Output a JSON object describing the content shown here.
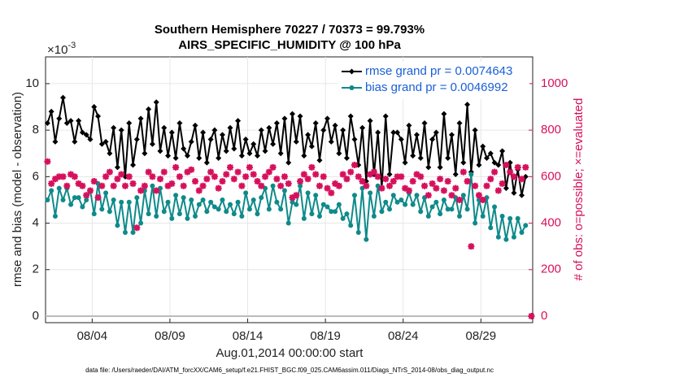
{
  "chart_data": {
    "type": "line",
    "title": [
      "Southern Hemisphere 70227 / 70373 = 99.793%",
      "AIRS_SPECIFIC_HUMIDITY @ 100 hPa"
    ],
    "ylabel": "rmse and bias (model - observation)",
    "y2label": "# of obs: o=possible; ×=evaluated",
    "xlabel": "Aug.01,2014 00:00:00 start",
    "footnote": "data file: /Users/raeder/DAI/ATM_forcXX/CAM6_setup/f.e21.FHIST_BGC.f09_025.CAM6assim.011/Diags_NTrS_2014-08/obs_diag_output.nc",
    "y_multiplier": {
      "base": "×10",
      "exponent": "-3"
    },
    "xlim": [
      0,
      31.33
    ],
    "xticks": [
      {
        "value": 3,
        "label": "08/04"
      },
      {
        "value": 8,
        "label": "08/09"
      },
      {
        "value": 13,
        "label": "08/14"
      },
      {
        "value": 18,
        "label": "08/19"
      },
      {
        "value": 23,
        "label": "08/24"
      },
      {
        "value": 28,
        "label": "08/29"
      }
    ],
    "ylim": [
      -0.28,
      11.15
    ],
    "yticks": [
      0,
      2,
      4,
      6,
      8,
      10
    ],
    "y2lim": [
      -28,
      1115
    ],
    "y2ticks": [
      0,
      200,
      400,
      600,
      800,
      1000
    ],
    "grid": true,
    "legend": "upper right",
    "x": [
      0.125,
      0.375,
      0.625,
      0.875,
      1.125,
      1.375,
      1.625,
      1.875,
      2.125,
      2.375,
      2.625,
      2.875,
      3.125,
      3.375,
      3.625,
      3.875,
      4.125,
      4.375,
      4.625,
      4.875,
      5.125,
      5.375,
      5.625,
      5.875,
      6.125,
      6.375,
      6.625,
      6.875,
      7.125,
      7.375,
      7.625,
      7.875,
      8.125,
      8.375,
      8.625,
      8.875,
      9.125,
      9.375,
      9.625,
      9.875,
      10.125,
      10.375,
      10.625,
      10.875,
      11.125,
      11.375,
      11.625,
      11.875,
      12.125,
      12.375,
      12.625,
      12.875,
      13.125,
      13.375,
      13.625,
      13.875,
      14.125,
      14.375,
      14.625,
      14.875,
      15.125,
      15.375,
      15.625,
      15.875,
      16.125,
      16.375,
      16.625,
      16.875,
      17.125,
      17.375,
      17.625,
      17.875,
      18.125,
      18.375,
      18.625,
      18.875,
      19.125,
      19.375,
      19.625,
      19.875,
      20.125,
      20.375,
      20.625,
      20.875,
      21.125,
      21.375,
      21.625,
      21.875,
      22.125,
      22.375,
      22.625,
      22.875,
      23.125,
      23.375,
      23.625,
      23.875,
      24.125,
      24.375,
      24.625,
      24.875,
      25.125,
      25.375,
      25.625,
      25.875,
      26.125,
      26.375,
      26.625,
      26.875,
      27.125,
      27.375,
      27.625,
      27.875,
      28.125,
      28.375,
      28.625,
      28.875,
      29.125,
      29.375,
      29.625,
      29.875,
      30.125,
      30.375,
      30.625,
      30.875,
      31.25
    ],
    "series": [
      {
        "name": "rmse grand pr = 0.0074643",
        "color": "#000000",
        "marker": "diamond",
        "values": [
          8.3,
          8.8,
          7.5,
          8.5,
          9.4,
          8.3,
          8.4,
          7.5,
          8.4,
          7.9,
          7.8,
          7.6,
          9.0,
          8.6,
          7.4,
          7.5,
          7.0,
          8.1,
          6.4,
          8.0,
          6.0,
          8.3,
          6.5,
          7.6,
          8.5,
          7.0,
          8.9,
          7.4,
          9.2,
          7.1,
          8.1,
          6.9,
          7.9,
          6.8,
          8.3,
          7.2,
          6.9,
          7.5,
          8.2,
          6.8,
          7.9,
          6.6,
          7.6,
          8.0,
          6.8,
          7.8,
          7.1,
          8.1,
          7.2,
          8.4,
          6.9,
          7.6,
          7.0,
          7.4,
          6.9,
          8.0,
          7.1,
          8.1,
          7.4,
          8.3,
          7.0,
          8.5,
          6.6,
          8.7,
          7.5,
          8.6,
          6.9,
          7.8,
          7.3,
          8.3,
          6.7,
          8.0,
          8.5,
          7.5,
          8.2,
          7.0,
          8.0,
          6.8,
          8.6,
          7.6,
          6.5,
          8.1,
          5.8,
          8.4,
          6.1,
          7.9,
          5.5,
          8.6,
          6.1,
          7.9,
          7.9,
          7.6,
          6.6,
          8.2,
          6.9,
          7.8,
          6.8,
          8.3,
          6.4,
          7.6,
          7.9,
          6.4,
          8.7,
          6.8,
          7.8,
          6.1,
          8.3,
          6.6,
          9.1,
          6.2,
          8.0,
          6.5,
          7.3,
          6.8,
          7.0,
          6.6,
          6.5,
          7.1,
          5.5,
          6.6,
          5.3,
          6.3,
          5.2,
          6.0,
          null
        ]
      },
      {
        "name": "bias grand pr = 0.0046992",
        "color": "#0f8a8a",
        "marker": "circle",
        "values": [
          5.0,
          5.4,
          4.3,
          5.5,
          5.0,
          5.5,
          4.8,
          5.1,
          5.1,
          4.7,
          5.0,
          5.4,
          4.4,
          5.7,
          4.6,
          5.3,
          4.5,
          5.0,
          3.9,
          4.9,
          3.6,
          4.9,
          3.6,
          5.1,
          4.0,
          5.4,
          4.4,
          5.6,
          4.3,
          5.5,
          4.5,
          4.9,
          4.2,
          5.2,
          4.4,
          5.1,
          4.2,
          5.0,
          4.3,
          4.8,
          5.0,
          4.5,
          4.9,
          4.7,
          4.6,
          5.0,
          4.5,
          4.8,
          4.4,
          4.9,
          4.3,
          5.3,
          4.6,
          5.0,
          4.4,
          5.1,
          5.5,
          4.6,
          5.6,
          4.9,
          4.6,
          5.4,
          4.0,
          4.9,
          4.8,
          5.6,
          4.2,
          5.3,
          4.4,
          5.2,
          4.3,
          4.8,
          4.7,
          4.5,
          4.5,
          4.8,
          4.2,
          4.4,
          3.9,
          5.2,
          3.6,
          5.5,
          3.3,
          5.3,
          4.3,
          5.6,
          4.5,
          4.9,
          4.6,
          5.2,
          4.9,
          5.0,
          4.8,
          5.3,
          4.8,
          5.2,
          4.5,
          5.1,
          4.3,
          4.7,
          4.9,
          4.4,
          5.0,
          4.6,
          4.6,
          5.1,
          4.3,
          5.2,
          4.6,
          6.1,
          4.0,
          5.0,
          4.3,
          5.1,
          3.8,
          4.7,
          3.4,
          4.3,
          3.3,
          4.2,
          3.4,
          4.2,
          3.6,
          3.9,
          null
        ]
      },
      {
        "color": "#d6105c",
        "marker": "star",
        "axis": "y2",
        "values": [
          665,
          570,
          590,
          600,
          600,
          560,
          610,
          600,
          570,
          560,
          520,
          540,
          580,
          510,
          560,
          600,
          620,
          560,
          590,
          610,
          560,
          600,
          570,
          380,
          540,
          560,
          620,
          600,
          540,
          590,
          620,
          560,
          570,
          640,
          600,
          560,
          620,
          630,
          580,
          540,
          560,
          590,
          620,
          600,
          550,
          580,
          610,
          640,
          590,
          620,
          560,
          600,
          640,
          610,
          580,
          560,
          600,
          620,
          640,
          590,
          560,
          600,
          570,
          510,
          520,
          580,
          610,
          590,
          640,
          610,
          560,
          600,
          550,
          530,
          570,
          560,
          610,
          590,
          620,
          650,
          600,
          580,
          560,
          610,
          620,
          600,
          550,
          590,
          560,
          580,
          600,
          600,
          550,
          540,
          580,
          610,
          600,
          560,
          520,
          570,
          550,
          590,
          540,
          580,
          520,
          550,
          500,
          620,
          580,
          300,
          560,
          520,
          500,
          560,
          590,
          620,
          540,
          570,
          650,
          620,
          600,
          640,
          590,
          640,
          0
        ]
      }
    ]
  }
}
